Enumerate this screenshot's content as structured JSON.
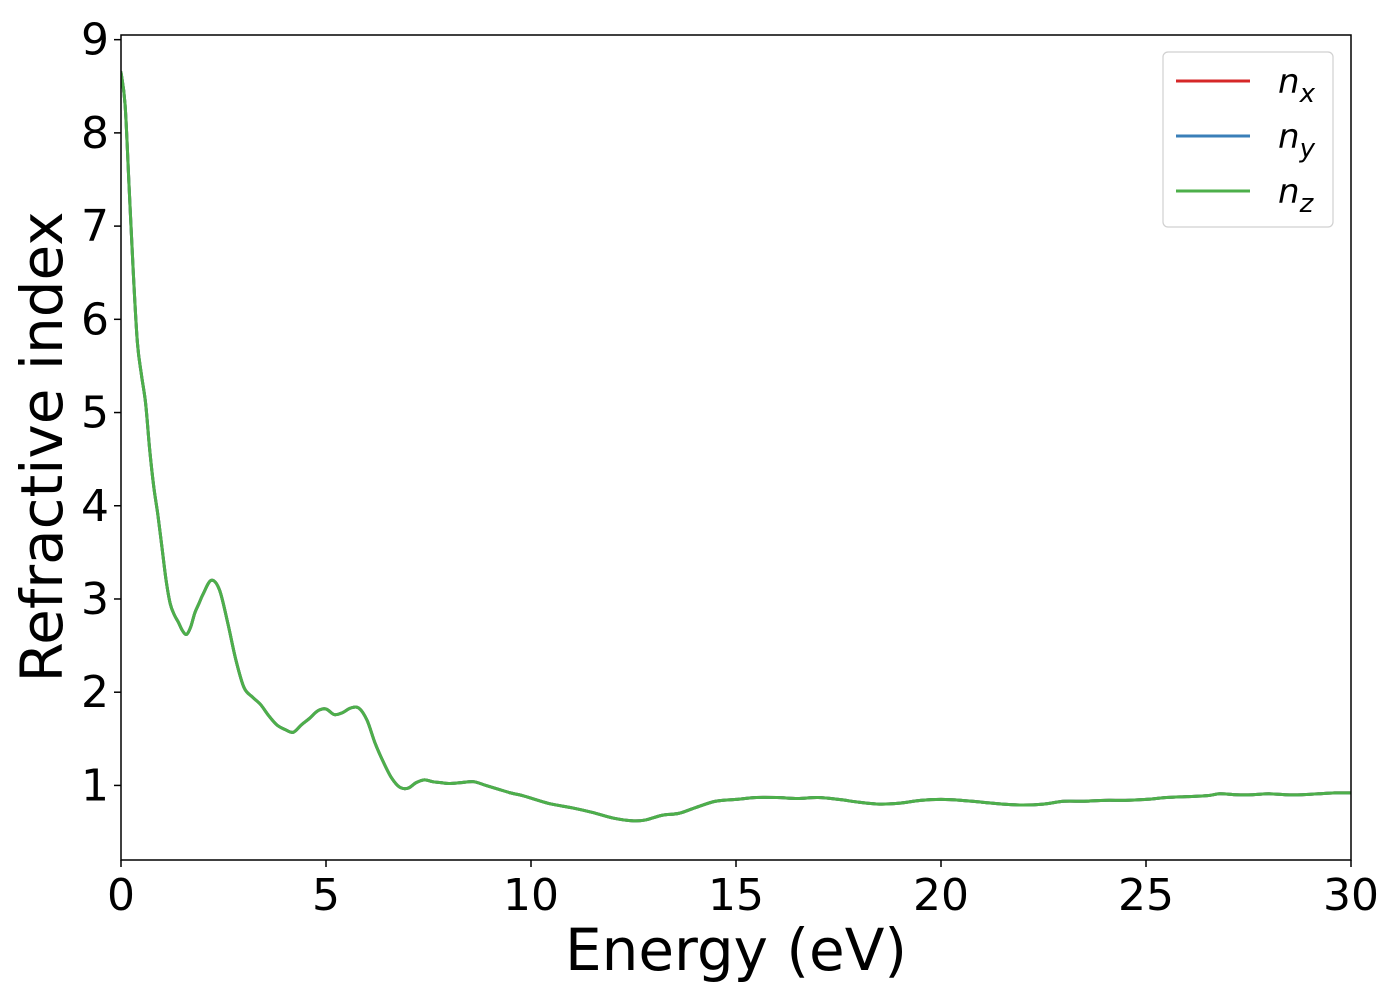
{
  "chart_data": {
    "type": "line",
    "title": "",
    "xlabel": "Energy (eV)",
    "ylabel": "Refractive index",
    "xlim": [
      0,
      30
    ],
    "ylim": [
      0.2,
      9.05
    ],
    "xticks": [
      0,
      5,
      10,
      15,
      20,
      25,
      30
    ],
    "yticks": [
      1,
      2,
      3,
      4,
      5,
      6,
      7,
      8,
      9
    ],
    "grid": false,
    "legend_position": "top-right",
    "series": [
      {
        "name": "n",
        "subscript": "x",
        "color": "#d62728",
        "x": [
          0,
          0.1,
          0.2,
          0.3,
          0.4,
          0.5,
          0.6,
          0.7,
          0.8,
          0.9,
          1.0,
          1.1,
          1.2,
          1.3,
          1.4,
          1.5,
          1.6,
          1.7,
          1.8,
          1.9,
          2.0,
          2.2,
          2.4,
          2.6,
          2.8,
          3.0,
          3.2,
          3.4,
          3.6,
          3.8,
          4.0,
          4.2,
          4.4,
          4.6,
          4.8,
          5.0,
          5.2,
          5.4,
          5.6,
          5.8,
          6.0,
          6.2,
          6.4,
          6.6,
          6.8,
          7.0,
          7.2,
          7.4,
          7.6,
          7.8,
          8.0,
          8.3,
          8.6,
          8.9,
          9.2,
          9.5,
          9.8,
          10.1,
          10.5,
          11.0,
          11.5,
          12.0,
          12.5,
          12.8,
          13.2,
          13.6,
          14.0,
          14.5,
          15.0,
          15.5,
          16.0,
          16.5,
          17.0,
          17.5,
          18.0,
          18.5,
          19.0,
          19.5,
          20.0,
          20.5,
          21.0,
          21.5,
          22.0,
          22.5,
          23.0,
          23.5,
          24.0,
          24.5,
          25.0,
          25.5,
          26.0,
          26.5,
          26.8,
          27.2,
          27.6,
          28.0,
          28.4,
          28.8,
          29.2,
          29.6,
          30.0
        ],
        "y": [
          8.65,
          8.3,
          7.4,
          6.5,
          5.75,
          5.4,
          5.1,
          4.6,
          4.2,
          3.9,
          3.55,
          3.2,
          2.95,
          2.83,
          2.75,
          2.66,
          2.62,
          2.7,
          2.85,
          2.95,
          3.05,
          3.2,
          3.1,
          2.75,
          2.35,
          2.05,
          1.95,
          1.87,
          1.75,
          1.65,
          1.6,
          1.57,
          1.65,
          1.72,
          1.8,
          1.82,
          1.76,
          1.78,
          1.83,
          1.83,
          1.7,
          1.45,
          1.25,
          1.08,
          0.98,
          0.97,
          1.03,
          1.06,
          1.04,
          1.03,
          1.02,
          1.03,
          1.04,
          1.0,
          0.96,
          0.92,
          0.89,
          0.85,
          0.8,
          0.76,
          0.71,
          0.65,
          0.62,
          0.63,
          0.68,
          0.7,
          0.76,
          0.83,
          0.85,
          0.87,
          0.87,
          0.86,
          0.87,
          0.85,
          0.82,
          0.8,
          0.81,
          0.84,
          0.85,
          0.84,
          0.82,
          0.8,
          0.79,
          0.8,
          0.83,
          0.83,
          0.84,
          0.84,
          0.85,
          0.87,
          0.88,
          0.89,
          0.91,
          0.9,
          0.9,
          0.91,
          0.9,
          0.9,
          0.91,
          0.92,
          0.92
        ]
      },
      {
        "name": "n",
        "subscript": "y",
        "color": "#3a7fb8",
        "x": [
          0,
          0.1,
          0.2,
          0.3,
          0.4,
          0.5,
          0.6,
          0.7,
          0.8,
          0.9,
          1.0,
          1.1,
          1.2,
          1.3,
          1.4,
          1.5,
          1.6,
          1.7,
          1.8,
          1.9,
          2.0,
          2.2,
          2.4,
          2.6,
          2.8,
          3.0,
          3.2,
          3.4,
          3.6,
          3.8,
          4.0,
          4.2,
          4.4,
          4.6,
          4.8,
          5.0,
          5.2,
          5.4,
          5.6,
          5.8,
          6.0,
          6.2,
          6.4,
          6.6,
          6.8,
          7.0,
          7.2,
          7.4,
          7.6,
          7.8,
          8.0,
          8.3,
          8.6,
          8.9,
          9.2,
          9.5,
          9.8,
          10.1,
          10.5,
          11.0,
          11.5,
          12.0,
          12.5,
          12.8,
          13.2,
          13.6,
          14.0,
          14.5,
          15.0,
          15.5,
          16.0,
          16.5,
          17.0,
          17.5,
          18.0,
          18.5,
          19.0,
          19.5,
          20.0,
          20.5,
          21.0,
          21.5,
          22.0,
          22.5,
          23.0,
          23.5,
          24.0,
          24.5,
          25.0,
          25.5,
          26.0,
          26.5,
          26.8,
          27.2,
          27.6,
          28.0,
          28.4,
          28.8,
          29.2,
          29.6,
          30.0
        ],
        "y": [
          8.65,
          8.3,
          7.4,
          6.5,
          5.75,
          5.4,
          5.1,
          4.6,
          4.2,
          3.9,
          3.55,
          3.2,
          2.95,
          2.83,
          2.75,
          2.66,
          2.62,
          2.7,
          2.85,
          2.95,
          3.05,
          3.2,
          3.1,
          2.75,
          2.35,
          2.05,
          1.95,
          1.87,
          1.75,
          1.65,
          1.6,
          1.57,
          1.65,
          1.72,
          1.8,
          1.82,
          1.76,
          1.78,
          1.83,
          1.83,
          1.7,
          1.45,
          1.25,
          1.08,
          0.98,
          0.97,
          1.03,
          1.06,
          1.04,
          1.03,
          1.02,
          1.03,
          1.04,
          1.0,
          0.96,
          0.92,
          0.89,
          0.85,
          0.8,
          0.76,
          0.71,
          0.65,
          0.62,
          0.63,
          0.68,
          0.7,
          0.76,
          0.83,
          0.85,
          0.87,
          0.87,
          0.86,
          0.87,
          0.85,
          0.82,
          0.8,
          0.81,
          0.84,
          0.85,
          0.84,
          0.82,
          0.8,
          0.79,
          0.8,
          0.83,
          0.83,
          0.84,
          0.84,
          0.85,
          0.87,
          0.88,
          0.89,
          0.91,
          0.9,
          0.9,
          0.91,
          0.9,
          0.9,
          0.91,
          0.92,
          0.92
        ]
      },
      {
        "name": "n",
        "subscript": "z",
        "color": "#4daf4a",
        "x": [
          0,
          0.1,
          0.2,
          0.3,
          0.4,
          0.5,
          0.6,
          0.7,
          0.8,
          0.9,
          1.0,
          1.1,
          1.2,
          1.3,
          1.4,
          1.5,
          1.6,
          1.7,
          1.8,
          1.9,
          2.0,
          2.2,
          2.4,
          2.6,
          2.8,
          3.0,
          3.2,
          3.4,
          3.6,
          3.8,
          4.0,
          4.2,
          4.4,
          4.6,
          4.8,
          5.0,
          5.2,
          5.4,
          5.6,
          5.8,
          6.0,
          6.2,
          6.4,
          6.6,
          6.8,
          7.0,
          7.2,
          7.4,
          7.6,
          7.8,
          8.0,
          8.3,
          8.6,
          8.9,
          9.2,
          9.5,
          9.8,
          10.1,
          10.5,
          11.0,
          11.5,
          12.0,
          12.5,
          12.8,
          13.2,
          13.6,
          14.0,
          14.5,
          15.0,
          15.5,
          16.0,
          16.5,
          17.0,
          17.5,
          18.0,
          18.5,
          19.0,
          19.5,
          20.0,
          20.5,
          21.0,
          21.5,
          22.0,
          22.5,
          23.0,
          23.5,
          24.0,
          24.5,
          25.0,
          25.5,
          26.0,
          26.5,
          26.8,
          27.2,
          27.6,
          28.0,
          28.4,
          28.8,
          29.2,
          29.6,
          30.0
        ],
        "y": [
          8.65,
          8.3,
          7.4,
          6.5,
          5.75,
          5.4,
          5.1,
          4.6,
          4.2,
          3.9,
          3.55,
          3.2,
          2.95,
          2.83,
          2.75,
          2.66,
          2.62,
          2.7,
          2.85,
          2.95,
          3.05,
          3.2,
          3.1,
          2.75,
          2.35,
          2.05,
          1.95,
          1.87,
          1.75,
          1.65,
          1.6,
          1.57,
          1.65,
          1.72,
          1.8,
          1.82,
          1.76,
          1.78,
          1.83,
          1.83,
          1.7,
          1.45,
          1.25,
          1.08,
          0.98,
          0.97,
          1.03,
          1.06,
          1.04,
          1.03,
          1.02,
          1.03,
          1.04,
          1.0,
          0.96,
          0.92,
          0.89,
          0.85,
          0.8,
          0.76,
          0.71,
          0.65,
          0.62,
          0.63,
          0.68,
          0.7,
          0.76,
          0.83,
          0.85,
          0.87,
          0.87,
          0.86,
          0.87,
          0.85,
          0.82,
          0.8,
          0.81,
          0.84,
          0.85,
          0.84,
          0.82,
          0.8,
          0.79,
          0.8,
          0.83,
          0.83,
          0.84,
          0.84,
          0.85,
          0.87,
          0.88,
          0.89,
          0.91,
          0.9,
          0.9,
          0.91,
          0.9,
          0.9,
          0.91,
          0.92,
          0.92
        ]
      }
    ]
  }
}
